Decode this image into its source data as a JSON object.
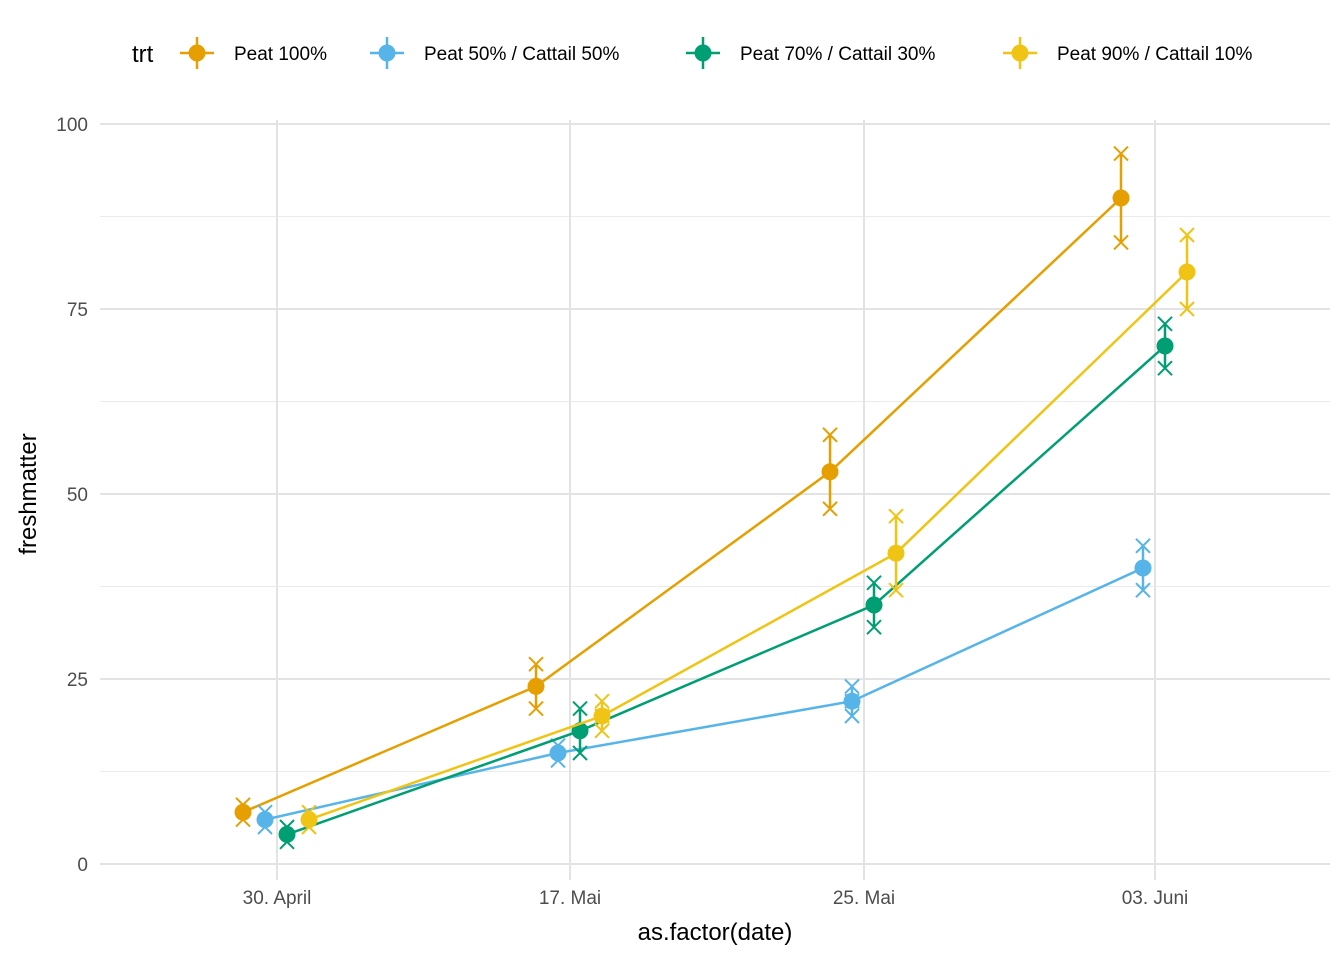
{
  "chart_data": {
    "type": "line",
    "xlabel": "as.factor(date)",
    "ylabel": "freshmatter",
    "categories": [
      "30. April",
      "17. Mai",
      "25. Mai",
      "03. Juni"
    ],
    "ylim": [
      0,
      100
    ],
    "y_ticks": [
      0,
      25,
      50,
      75,
      100
    ],
    "grid": true,
    "legend": {
      "title": "trt",
      "position": "top"
    },
    "series": [
      {
        "name": "Peat 100%",
        "color": "#E69F00",
        "means": [
          7,
          24,
          53,
          90
        ],
        "error_min": [
          6,
          21,
          48,
          84
        ],
        "error_max": [
          8,
          27,
          58,
          96
        ],
        "replicates": [
          [
            6,
            8
          ],
          [
            21,
            27
          ],
          [
            48,
            58
          ],
          [
            84,
            96
          ]
        ]
      },
      {
        "name": "Peat 50% / Cattail 50%",
        "color": "#56B4E9",
        "means": [
          6,
          15,
          22,
          40
        ],
        "error_min": [
          5,
          14,
          20,
          37
        ],
        "error_max": [
          7,
          16,
          24,
          43
        ],
        "replicates": [
          [
            5,
            7
          ],
          [
            14,
            16
          ],
          [
            20,
            22,
            24
          ],
          [
            37,
            43
          ]
        ]
      },
      {
        "name": "Peat 70% / Cattail 30%",
        "color": "#009E73",
        "means": [
          4,
          18,
          35,
          70
        ],
        "error_min": [
          3,
          15,
          32,
          67
        ],
        "error_max": [
          5,
          21,
          38,
          73
        ],
        "replicates": [
          [
            3,
            5
          ],
          [
            15,
            21
          ],
          [
            32,
            38
          ],
          [
            67,
            73
          ]
        ]
      },
      {
        "name": "Peat 90% / Cattail 10%",
        "color": "#F0C414",
        "means": [
          6,
          20,
          42,
          80
        ],
        "error_min": [
          5,
          18,
          37,
          75
        ],
        "error_max": [
          7,
          22,
          47,
          85
        ],
        "replicates": [
          [
            5,
            7
          ],
          [
            18,
            20,
            22
          ],
          [
            37,
            47
          ],
          [
            75,
            85
          ]
        ]
      }
    ]
  }
}
